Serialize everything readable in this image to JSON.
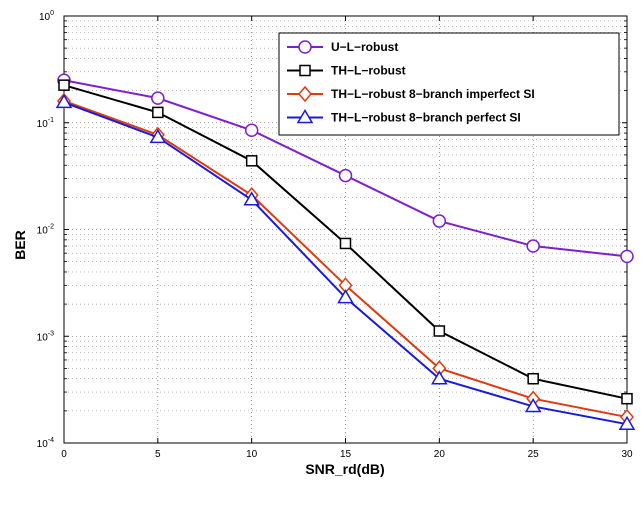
{
  "chart_data": {
    "type": "line",
    "xlabel": "SNR_rd(dB)",
    "ylabel": "BER",
    "x": [
      0,
      5,
      10,
      15,
      20,
      25,
      30
    ],
    "xlim": [
      0,
      30
    ],
    "ylim": [
      0.0001,
      1
    ],
    "yscale": "log",
    "grid": true,
    "legend_position": "top-right",
    "x_ticks": [
      "0",
      "5",
      "10",
      "15",
      "20",
      "25",
      "30"
    ],
    "y_ticks": [
      {
        "base": "10",
        "exp": "-4"
      },
      {
        "base": "10",
        "exp": "-3"
      },
      {
        "base": "10",
        "exp": "-2"
      },
      {
        "base": "10",
        "exp": "-1"
      },
      {
        "base": "10",
        "exp": "0"
      }
    ],
    "series": [
      {
        "name": "U−L−robust",
        "color": "#7f1fd1",
        "marker": "circle",
        "values": [
          0.25,
          0.17,
          0.085,
          0.032,
          0.012,
          0.007,
          0.0056
        ]
      },
      {
        "name": "TH−L−robust",
        "color": "#000000",
        "marker": "square",
        "values": [
          0.225,
          0.125,
          0.044,
          0.0074,
          0.00112,
          0.0004,
          0.00026
        ]
      },
      {
        "name": "TH−L−robust 8−branch imperfect SI",
        "color": "#e03a10",
        "marker": "diamond",
        "values": [
          0.16,
          0.077,
          0.021,
          0.003,
          0.0005,
          0.00026,
          0.000175
        ]
      },
      {
        "name": "TH−L−robust 8−branch perfect SI",
        "color": "#1a1adb",
        "marker": "triangle",
        "values": [
          0.155,
          0.073,
          0.019,
          0.0023,
          0.0004,
          0.00022,
          0.00015
        ]
      }
    ]
  }
}
